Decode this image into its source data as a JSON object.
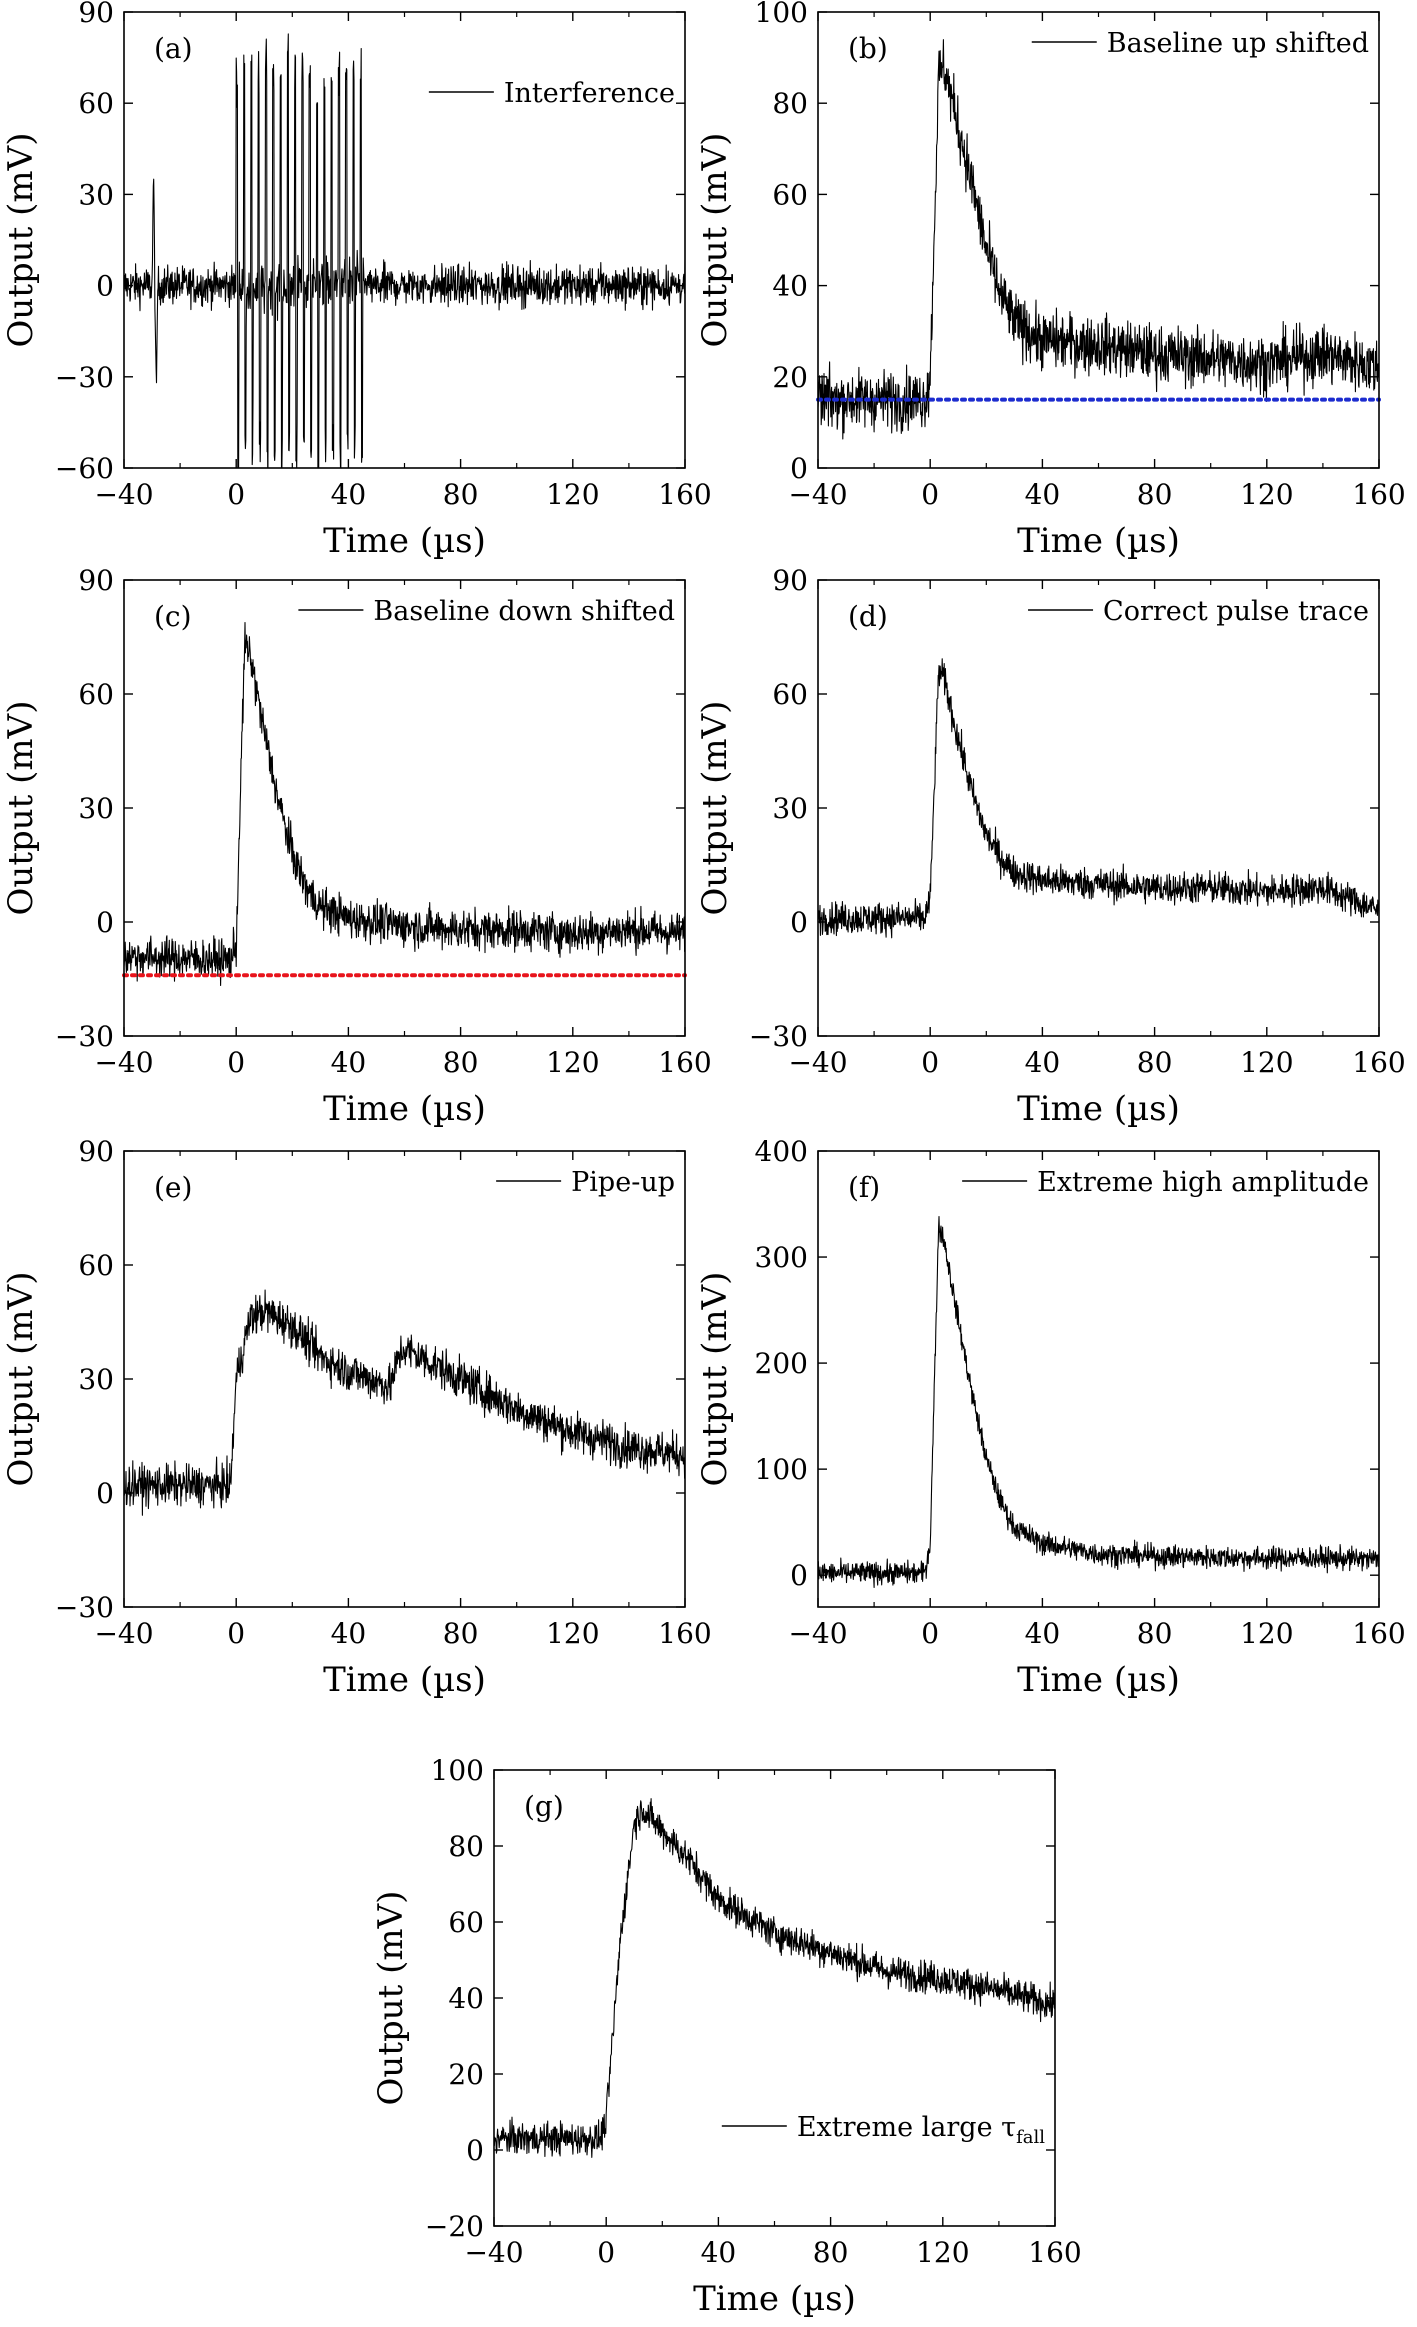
{
  "figure": {
    "background": "#ffffff",
    "trace_color": "#000000"
  },
  "chart_data": [
    {
      "panel": "(a)",
      "type": "line",
      "xlabel": "Time (µs)",
      "ylabel": "Output (mV)",
      "xlim": [
        -40,
        160
      ],
      "ylim": [
        -60,
        90
      ],
      "xticks": [
        -40,
        0,
        40,
        80,
        120,
        160
      ],
      "yticks": [
        -60,
        -30,
        0,
        30,
        60,
        90
      ],
      "legend": {
        "label": "Interference",
        "placement": "top-right"
      },
      "baseline": null,
      "series": [
        {
          "name": "Interference",
          "x": [
            -40,
            -30,
            -29.5,
            -28.5,
            -28,
            -20,
            -2,
            0,
            10,
            22,
            30,
            40,
            46,
            48,
            160
          ],
          "y": [
            0,
            0,
            38,
            -40,
            0,
            0,
            0,
            0,
            0,
            0,
            0,
            0,
            0,
            0,
            0
          ],
          "noise": 6,
          "burst": {
            "start": 0,
            "end": 46,
            "period": 2.6,
            "amplitude_pos": [
              72,
              75,
              78,
              76,
              75,
              74
            ],
            "amplitude_neg": -58
          }
        }
      ]
    },
    {
      "panel": "(b)",
      "type": "line",
      "xlabel": "Time (µs)",
      "ylabel": "Output (mV)",
      "xlim": [
        -40,
        160
      ],
      "ylim": [
        0,
        100
      ],
      "xticks": [
        -40,
        0,
        40,
        80,
        120,
        160
      ],
      "yticks": [
        0,
        20,
        40,
        60,
        80,
        100
      ],
      "legend": {
        "label": "Baseline up shifted",
        "placement": "top-right"
      },
      "baseline": {
        "value": 15,
        "color": "#1c2ccf"
      },
      "series": [
        {
          "name": "Baseline up shifted",
          "x": [
            -40,
            -2,
            0,
            3,
            5,
            10,
            15,
            20,
            25,
            30,
            40,
            60,
            80,
            100,
            120,
            140,
            160
          ],
          "y": [
            15,
            15,
            20,
            86,
            88,
            75,
            62,
            48,
            38,
            32,
            28,
            27,
            25,
            24,
            23,
            25,
            22
          ],
          "noise": 6
        }
      ]
    },
    {
      "panel": "(c)",
      "type": "line",
      "xlabel": "Time (µs)",
      "ylabel": "Output (mV)",
      "xlim": [
        -40,
        160
      ],
      "ylim": [
        -30,
        90
      ],
      "xticks": [
        -40,
        0,
        40,
        80,
        120,
        160
      ],
      "yticks": [
        -30,
        0,
        30,
        60,
        90
      ],
      "legend": {
        "label": "Baseline down shifted",
        "placement": "top-right"
      },
      "baseline": {
        "value": -14,
        "color": "#e8141c"
      },
      "series": [
        {
          "name": "Baseline down shifted",
          "x": [
            -40,
            -2,
            0,
            3,
            5,
            10,
            15,
            20,
            25,
            30,
            40,
            60,
            80,
            100,
            120,
            140,
            160
          ],
          "y": [
            -9,
            -10,
            -6,
            73,
            70,
            50,
            32,
            18,
            9,
            4,
            1,
            -1,
            -2,
            -2,
            -3,
            -2,
            -3
          ],
          "noise": 5
        }
      ]
    },
    {
      "panel": "(d)",
      "type": "line",
      "xlabel": "Time (µs)",
      "ylabel": "Output (mV)",
      "xlim": [
        -40,
        160
      ],
      "ylim": [
        -30,
        90
      ],
      "xticks": [
        -40,
        0,
        40,
        80,
        120,
        160
      ],
      "yticks": [
        -30,
        0,
        30,
        60,
        90
      ],
      "legend": {
        "label": "Correct pulse trace",
        "placement": "top-right"
      },
      "baseline": null,
      "series": [
        {
          "name": "Correct pulse trace",
          "x": [
            -40,
            -2,
            0,
            3,
            5,
            10,
            15,
            20,
            25,
            30,
            40,
            60,
            80,
            100,
            120,
            140,
            150,
            160
          ],
          "y": [
            1,
            1,
            6,
            66,
            64,
            48,
            34,
            23,
            17,
            13,
            11,
            10,
            9,
            9,
            8,
            9,
            6,
            3
          ],
          "noise": 4
        }
      ]
    },
    {
      "panel": "(e)",
      "type": "line",
      "xlabel": "Time (µs)",
      "ylabel": "Output (mV)",
      "xlim": [
        -40,
        160
      ],
      "ylim": [
        -30,
        90
      ],
      "xticks": [
        -40,
        0,
        40,
        80,
        120,
        160
      ],
      "yticks": [
        -30,
        0,
        30,
        60,
        90
      ],
      "legend": {
        "label": "Pipe-up",
        "placement": "top-right"
      },
      "baseline": null,
      "series": [
        {
          "name": "Pipe-up",
          "x": [
            -40,
            -2,
            0,
            5,
            10,
            20,
            30,
            40,
            55,
            58,
            60,
            80,
            100,
            120,
            140,
            160
          ],
          "y": [
            2,
            2,
            30,
            46,
            48,
            44,
            36,
            32,
            28,
            36,
            38,
            30,
            22,
            16,
            12,
            10
          ],
          "noise": 5
        }
      ]
    },
    {
      "panel": "(f)",
      "type": "line",
      "xlabel": "Time (µs)",
      "ylabel": "Output (mV)",
      "xlim": [
        -40,
        160
      ],
      "ylim": [
        -30,
        400
      ],
      "xticks": [
        -40,
        0,
        40,
        80,
        120,
        160
      ],
      "yticks": [
        0,
        100,
        200,
        300,
        400
      ],
      "legend": {
        "label": "Extreme high amplitude",
        "placement": "top-right"
      },
      "baseline": null,
      "series": [
        {
          "name": "Extreme high amplitude",
          "x": [
            -40,
            -2,
            0,
            3,
            5,
            10,
            15,
            20,
            25,
            30,
            40,
            60,
            80,
            100,
            120,
            140,
            160
          ],
          "y": [
            2,
            2,
            30,
            330,
            315,
            240,
            170,
            110,
            70,
            45,
            30,
            20,
            18,
            17,
            16,
            16,
            15
          ],
          "noise": 10
        }
      ]
    },
    {
      "panel": "(g)",
      "type": "line",
      "xlabel": "Time (µs)",
      "ylabel": "Output (mV)",
      "xlim": [
        -40,
        160
      ],
      "ylim": [
        -20,
        100
      ],
      "xticks": [
        -40,
        0,
        40,
        80,
        120,
        160
      ],
      "yticks": [
        -20,
        0,
        20,
        40,
        60,
        80,
        100
      ],
      "legend": {
        "label": "Extreme large τ",
        "label_subscript": "fall",
        "placement": "bottom-right"
      },
      "baseline": null,
      "series": [
        {
          "name": "Extreme large τfall",
          "x": [
            -40,
            -2,
            0,
            5,
            10,
            13,
            15,
            20,
            30,
            40,
            60,
            80,
            100,
            120,
            140,
            160
          ],
          "y": [
            3,
            3,
            8,
            55,
            86,
            90,
            88,
            84,
            76,
            66,
            57,
            52,
            47,
            45,
            42,
            38
          ],
          "noise": 4
        }
      ]
    }
  ]
}
